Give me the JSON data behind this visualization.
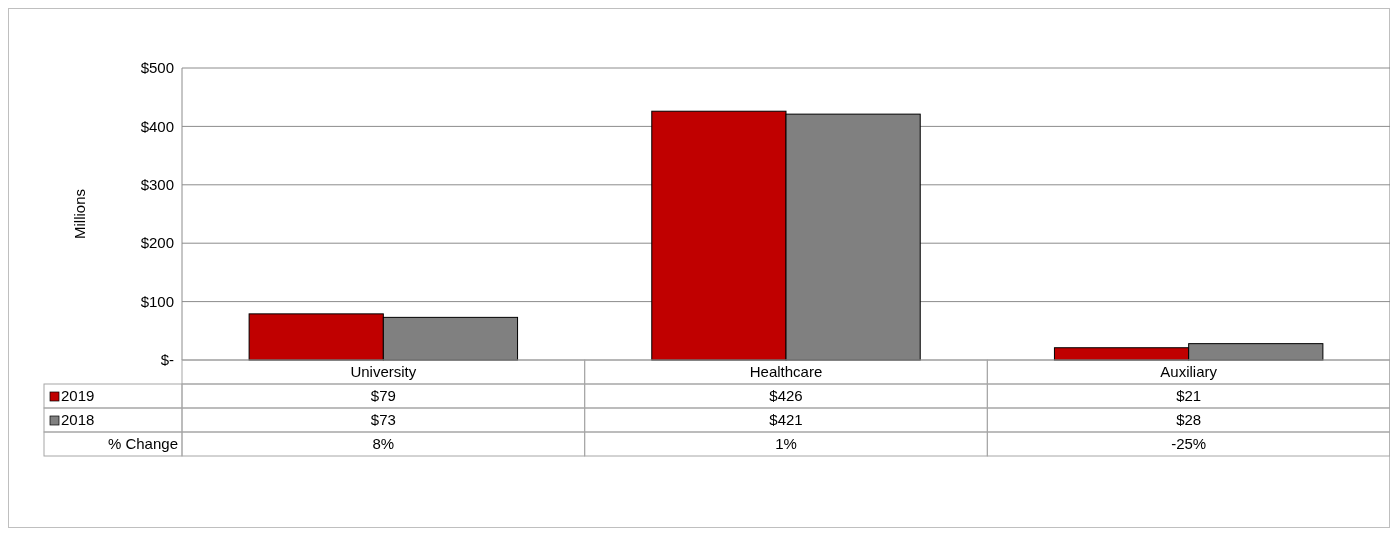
{
  "chart_data": {
    "type": "bar",
    "ylabel": "Millions",
    "categories": [
      "University",
      "Healthcare",
      "Auxiliary"
    ],
    "series": [
      {
        "name": "2019",
        "color": "#c00000",
        "values": [
          79,
          426,
          21
        ],
        "value_labels": [
          "$79",
          "$426",
          "$21"
        ]
      },
      {
        "name": "2018",
        "color": "#808080",
        "values": [
          73,
          421,
          28
        ],
        "value_labels": [
          "$73",
          "$421",
          "$28"
        ]
      }
    ],
    "ylim": [
      0,
      500
    ],
    "yticks": [
      {
        "value": 0,
        "label": "$-"
      },
      {
        "value": 100,
        "label": "$100"
      },
      {
        "value": 200,
        "label": "$200"
      },
      {
        "value": 300,
        "label": "$300"
      },
      {
        "value": 400,
        "label": "$400"
      },
      {
        "value": 500,
        "label": "$500"
      }
    ],
    "grid": "y",
    "legend": "bottom",
    "annotations": [
      "% Change",
      "8%",
      "1%",
      "-25%"
    ]
  }
}
